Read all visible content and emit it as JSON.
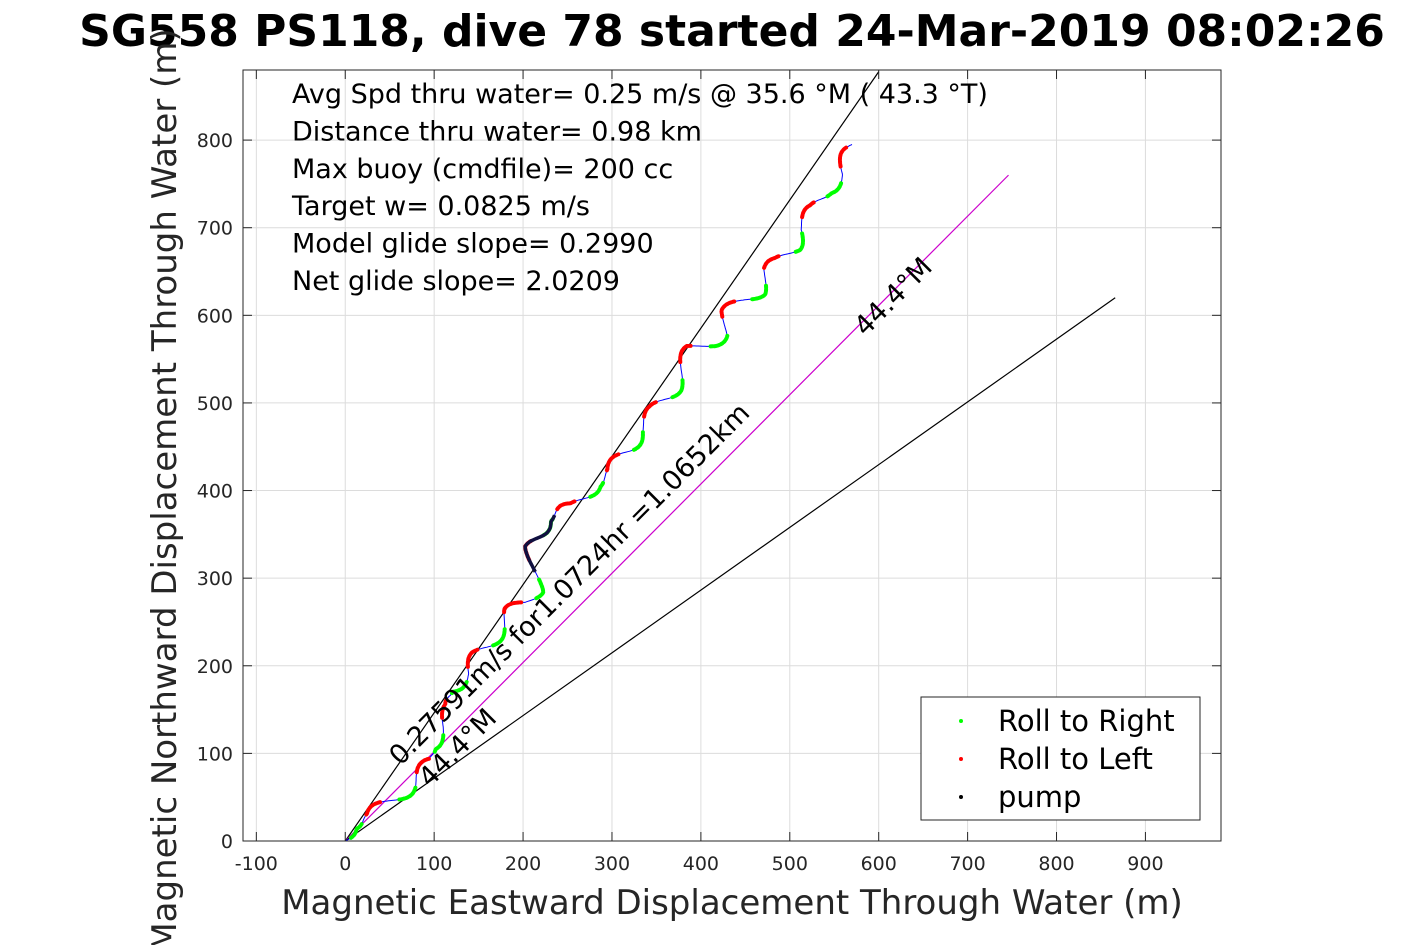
{
  "chart_data": {
    "type": "line",
    "title": "SG558 PS118, dive 78 started 24-Mar-2019 08:02:26",
    "xlabel": "Magnetic Eastward Displacement Through Water (m)",
    "ylabel": "Magnetic Northward Displacement Through Water (m)",
    "xlim": [
      -115,
      985
    ],
    "ylim": [
      0,
      880
    ],
    "xticks": [
      -100,
      0,
      100,
      200,
      300,
      400,
      500,
      600,
      700,
      800,
      900
    ],
    "yticks": [
      0,
      100,
      200,
      300,
      400,
      500,
      600,
      700,
      800
    ],
    "grid": true,
    "stats": [
      "Avg Spd thru water=  0.25 m/s @  35.6 °M ( 43.3 °T)",
      "Distance thru water=  0.98 km",
      "Max buoy (cmdfile)= 200 cc",
      "Target w= 0.0825 m/s",
      "Model glide slope= 0.2990",
      "Net glide slope= 2.0209"
    ],
    "annotations": {
      "speed_label": "0.27591m/s for1.0724hr =1.0652km",
      "heading_label_upper": "44.4°M",
      "heading_label_lower": "44.4°M"
    },
    "reference_lines": [
      {
        "name": "upper-bound-line",
        "color": "#000000",
        "x": [
          0,
          600
        ],
        "y": [
          0,
          878
        ]
      },
      {
        "name": "net-track-line",
        "color": "#cc00cc",
        "x": [
          0,
          746
        ],
        "y": [
          0,
          760
        ]
      },
      {
        "name": "lower-bound-line",
        "color": "#000000",
        "x": [
          0,
          866
        ],
        "y": [
          0,
          620
        ]
      }
    ],
    "track": {
      "color": "#0000ff",
      "anchors": [
        [
          0,
          0
        ],
        [
          5,
          20
        ],
        [
          20,
          25
        ],
        [
          30,
          27
        ],
        [
          55,
          50
        ],
        [
          75,
          65
        ],
        [
          100,
          90
        ],
        [
          95,
          110
        ],
        [
          110,
          130
        ],
        [
          120,
          150
        ],
        [
          115,
          175
        ],
        [
          140,
          190
        ],
        [
          150,
          210
        ],
        [
          185,
          260
        ],
        [
          205,
          270
        ],
        [
          215,
          290
        ],
        [
          210,
          330
        ],
        [
          225,
          370
        ],
        [
          260,
          380
        ],
        [
          280,
          410
        ],
        [
          300,
          420
        ],
        [
          320,
          450
        ],
        [
          330,
          470
        ],
        [
          350,
          490
        ],
        [
          370,
          520
        ],
        [
          380,
          540
        ],
        [
          390,
          560
        ],
        [
          410,
          570
        ],
        [
          425,
          580
        ],
        [
          430,
          600
        ],
        [
          450,
          620
        ],
        [
          465,
          630
        ],
        [
          475,
          650
        ],
        [
          490,
          660
        ],
        [
          505,
          680
        ],
        [
          510,
          700
        ],
        [
          530,
          720
        ],
        [
          540,
          745
        ],
        [
          560,
          760
        ],
        [
          570,
          795
        ]
      ],
      "wiggle_amplitude": 10,
      "wiggle_cycles": 14
    },
    "legend": {
      "position": "bottom-right",
      "entries": [
        {
          "label": "Roll to Right",
          "color": "#00ff00"
        },
        {
          "label": "Roll to Left",
          "color": "#ff0000"
        },
        {
          "label": "pump",
          "color": "#000000"
        }
      ]
    }
  }
}
